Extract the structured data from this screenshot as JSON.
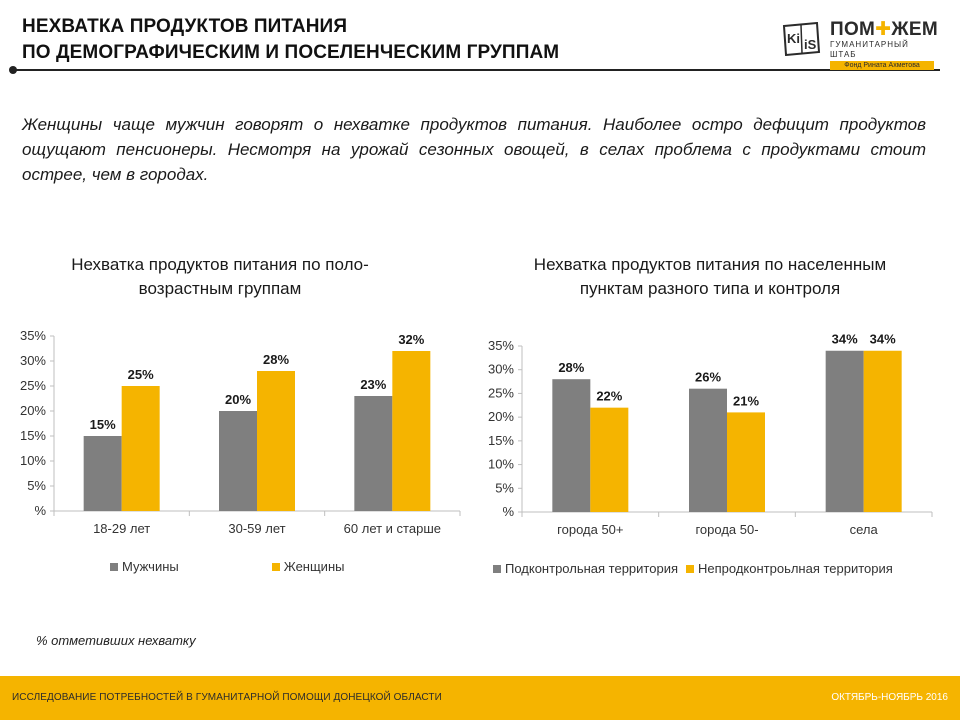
{
  "header": {
    "title_line1": "НЕХВАТКА ПРОДУКТОВ ПИТАНИЯ",
    "title_line2": "ПО ДЕМОГРАФИЧЕСКИМ И ПОСЕЛЕНЧЕСКИМ ГРУППАМ"
  },
  "logos": {
    "kiis": "KiiS",
    "pomozhem_title_a": "ПОМ",
    "pomozhem_title_b": "ЖЕМ",
    "pomozhem_sub": "ГУМАНИТАРНЫЙ ШТАБ",
    "pomozhem_fund": "Фонд Рината Ахметова"
  },
  "intro": "Женщины чаще мужчин говорят о нехватке продуктов питания. Наиболее остро дефицит продуктов ощущают пенсионеры. Несмотря на урожай сезонных овощей, в селах проблема с продуктами стоит острее, чем в городах.",
  "colors": {
    "gray": "#7f7f7f",
    "orange": "#f5b400"
  },
  "chart_data": [
    {
      "type": "bar",
      "title": "Нехватка продуктов питания  по поло-возрастным группам",
      "categories": [
        "18-29 лет",
        "30-59 лет",
        "60 лет и старше"
      ],
      "series": [
        {
          "name": "Мужчины",
          "values": [
            15,
            20,
            23
          ],
          "labels": [
            "15%",
            "20%",
            "23%"
          ]
        },
        {
          "name": "Женщины",
          "values": [
            25,
            28,
            32
          ],
          "labels": [
            "25%",
            "28%",
            "32%"
          ]
        }
      ],
      "ylim": [
        0,
        35
      ],
      "yticks": [
        0,
        5,
        10,
        15,
        20,
        25,
        30,
        35
      ],
      "ytick_labels": [
        "%",
        "5%",
        "10%",
        "15%",
        "20%",
        "25%",
        "30%",
        "35%"
      ],
      "xlabel": "",
      "ylabel": "",
      "legend_position": "bottom",
      "grid": false
    },
    {
      "type": "bar",
      "title": "Нехватка продуктов питания  по населенным пунктам разного типа и контроля",
      "categories": [
        "города 50+",
        "города 50-",
        "села"
      ],
      "series": [
        {
          "name": "Подконтрольная территория",
          "values": [
            28,
            26,
            34
          ],
          "labels": [
            "28%",
            "26%",
            "34%"
          ]
        },
        {
          "name": "Непродконтроьлная территория",
          "values": [
            22,
            21,
            34
          ],
          "labels": [
            "22%",
            "21%",
            "34%"
          ]
        }
      ],
      "ylim": [
        0,
        35
      ],
      "yticks": [
        0,
        5,
        10,
        15,
        20,
        25,
        30,
        35
      ],
      "ytick_labels": [
        "%",
        "5%",
        "10%",
        "15%",
        "20%",
        "25%",
        "30%",
        "35%"
      ],
      "xlabel": "",
      "ylabel": "",
      "legend_position": "bottom",
      "grid": false
    }
  ],
  "footnote": "% отметивших нехватку",
  "footer": {
    "left": "ИССЛЕДОВАНИЕ ПОТРЕБНОСТЕЙ В ГУМАНИТАРНОЙ ПОМОЩИ ДОНЕЦКОЙ ОБЛАСТИ",
    "right": "ОКТЯБРЬ-НОЯБРЬ 2016"
  }
}
